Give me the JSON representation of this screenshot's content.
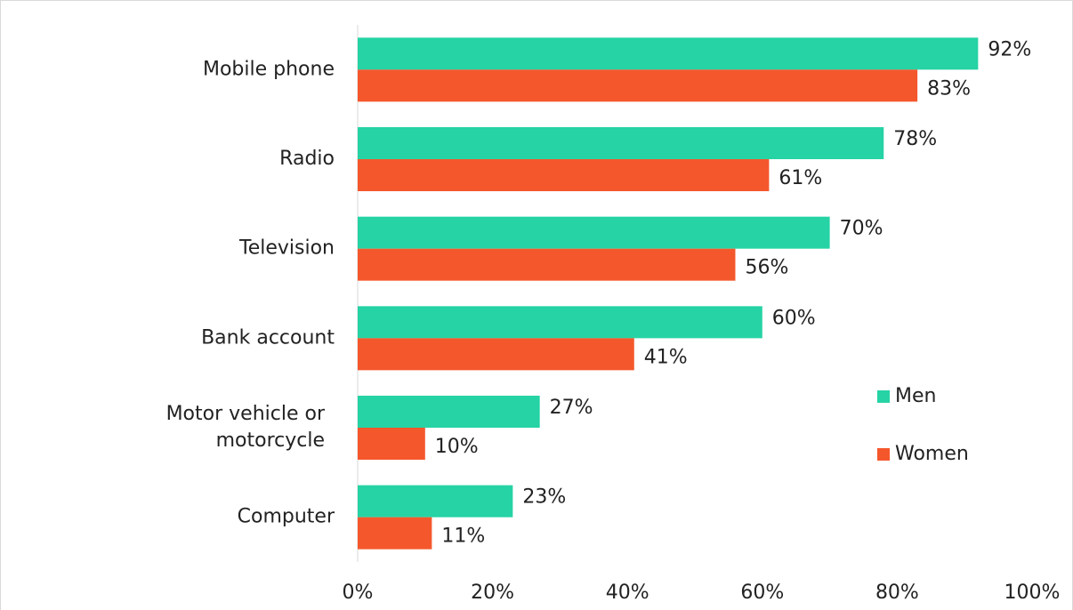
{
  "chart_data": {
    "type": "bar",
    "orientation": "horizontal",
    "categories": [
      "Mobile phone",
      "Radio",
      "Television",
      "Bank account",
      "Motor vehicle or\nmotorcycle",
      "Computer"
    ],
    "series": [
      {
        "name": "Men",
        "color": "#26d3a4",
        "values": [
          92,
          78,
          70,
          60,
          27,
          23
        ],
        "value_labels": [
          "92%",
          "78%",
          "70%",
          "60%",
          "27%",
          "23%"
        ]
      },
      {
        "name": "Women",
        "color": "#f4572c",
        "values": [
          83,
          61,
          56,
          41,
          10,
          11
        ],
        "value_labels": [
          "83%",
          "61%",
          "56%",
          "41%",
          "10%",
          "11%"
        ]
      }
    ],
    "xlim": [
      0,
      100
    ],
    "xticks": [
      {
        "value": 0,
        "label": "0%"
      },
      {
        "value": 20,
        "label": "20%"
      },
      {
        "value": 40,
        "label": "40%"
      },
      {
        "value": 60,
        "label": "60%"
      },
      {
        "value": 80,
        "label": "80%"
      },
      {
        "value": 100,
        "label": "100%"
      }
    ],
    "grid": false,
    "legend": "right"
  }
}
